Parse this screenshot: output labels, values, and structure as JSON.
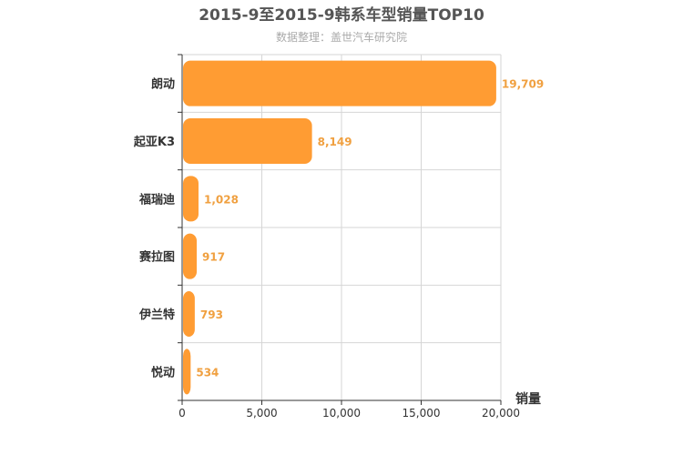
{
  "colors": {
    "bar": "#ff9c33",
    "value_label": "#f0a040",
    "grid": "#d6d6d6",
    "axis": "#333333"
  },
  "chart_data": {
    "type": "bar",
    "orientation": "horizontal",
    "title": "2015-9至2015-9韩系车型销量TOP10",
    "subtitle": "数据整理：盖世汽车研究院",
    "xlabel": "销量",
    "ylabel": "",
    "categories": [
      "朗动",
      "起亚K3",
      "福瑞迪",
      "赛拉图",
      "伊兰特",
      "悦动"
    ],
    "values": [
      19709,
      8149,
      1028,
      917,
      793,
      534
    ],
    "value_labels": [
      "19,709",
      "8,149",
      "1,028",
      "917",
      "793",
      "534"
    ],
    "xlim": [
      0,
      20000
    ],
    "xticks": [
      0,
      5000,
      10000,
      15000,
      20000
    ],
    "xtick_labels": [
      "0",
      "5,000",
      "10,000",
      "15,000",
      "20,000"
    ],
    "grid": true,
    "legend": "none"
  }
}
